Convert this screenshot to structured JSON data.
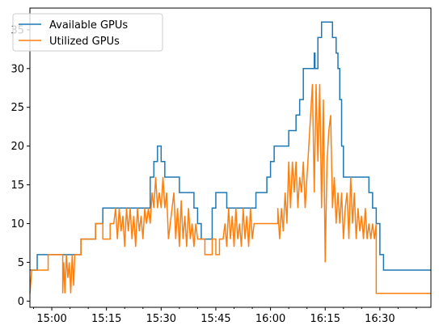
{
  "chart_data": {
    "type": "line",
    "title": "",
    "xlabel": "",
    "ylabel": "",
    "x_unit": "time (HH:MM)",
    "xlim": [
      "14:54",
      "16:44"
    ],
    "ylim": [
      -0.8,
      37.8
    ],
    "x_tick_labels": [
      "15:00",
      "15:15",
      "15:30",
      "15:45",
      "16:00",
      "16:15",
      "16:30"
    ],
    "y_ticks": [
      0,
      5,
      10,
      15,
      20,
      25,
      30,
      35
    ],
    "grid": false,
    "legend": {
      "placement": "top-left"
    },
    "series": [
      {
        "name": "Available GPUs",
        "color": "#1f77b4",
        "points": [
          [
            "14:54",
            4
          ],
          [
            "14:56",
            4
          ],
          [
            "14:56",
            6
          ],
          [
            "15:08",
            6
          ],
          [
            "15:08",
            8
          ],
          [
            "15:12",
            8
          ],
          [
            "15:12",
            10
          ],
          [
            "15:14",
            10
          ],
          [
            "15:14",
            12
          ],
          [
            "15:27",
            12
          ],
          [
            "15:27",
            16
          ],
          [
            "15:28",
            16
          ],
          [
            "15:28",
            18
          ],
          [
            "15:29",
            18
          ],
          [
            "15:29",
            20
          ],
          [
            "15:30",
            20
          ],
          [
            "15:30",
            18
          ],
          [
            "15:31",
            18
          ],
          [
            "15:31",
            16
          ],
          [
            "15:35",
            16
          ],
          [
            "15:35",
            14
          ],
          [
            "15:39",
            14
          ],
          [
            "15:39",
            12
          ],
          [
            "15:40",
            12
          ],
          [
            "15:40",
            10
          ],
          [
            "15:41",
            10
          ],
          [
            "15:41",
            8
          ],
          [
            "15:44",
            8
          ],
          [
            "15:44",
            12
          ],
          [
            "15:45",
            12
          ],
          [
            "15:45",
            14
          ],
          [
            "15:48",
            14
          ],
          [
            "15:48",
            12
          ],
          [
            "15:56",
            12
          ],
          [
            "15:56",
            14
          ],
          [
            "15:59",
            14
          ],
          [
            "15:59",
            16
          ],
          [
            "16:00",
            16
          ],
          [
            "16:00",
            18
          ],
          [
            "16:01",
            18
          ],
          [
            "16:01",
            20
          ],
          [
            "16:05",
            20
          ],
          [
            "16:05",
            22
          ],
          [
            "16:07",
            22
          ],
          [
            "16:07",
            24
          ],
          [
            "16:08",
            24
          ],
          [
            "16:08",
            26
          ],
          [
            "16:09",
            26
          ],
          [
            "16:09",
            30
          ],
          [
            "16:12",
            30
          ],
          [
            "16:12",
            32
          ],
          [
            "16:12.2",
            32
          ],
          [
            "16:12.2",
            30
          ],
          [
            "16:13",
            30
          ],
          [
            "16:13",
            34
          ],
          [
            "16:14",
            34
          ],
          [
            "16:14",
            36
          ],
          [
            "16:17",
            36
          ],
          [
            "16:17",
            34
          ],
          [
            "16:18",
            34
          ],
          [
            "16:18",
            32
          ],
          [
            "16:18.5",
            32
          ],
          [
            "16:18.5",
            30
          ],
          [
            "16:19",
            30
          ],
          [
            "16:19",
            26
          ],
          [
            "16:19.5",
            26
          ],
          [
            "16:19.5",
            20
          ],
          [
            "16:20",
            20
          ],
          [
            "16:20",
            16
          ],
          [
            "16:27",
            16
          ],
          [
            "16:27",
            14
          ],
          [
            "16:28",
            14
          ],
          [
            "16:28",
            12
          ],
          [
            "16:29",
            12
          ],
          [
            "16:29",
            10
          ],
          [
            "16:30",
            10
          ],
          [
            "16:30",
            6
          ],
          [
            "16:31",
            6
          ],
          [
            "16:31",
            4
          ],
          [
            "16:44",
            4
          ]
        ]
      },
      {
        "name": "Utilized GPUs",
        "color": "#ff7f0e",
        "points": [
          [
            "14:54",
            1
          ],
          [
            "14:54.5",
            4
          ],
          [
            "14:59",
            4
          ],
          [
            "14:59",
            6
          ],
          [
            "15:03",
            6
          ],
          [
            "15:03",
            1
          ],
          [
            "15:03.3",
            5
          ],
          [
            "15:03.6",
            1
          ],
          [
            "15:04",
            6
          ],
          [
            "15:04.4",
            3
          ],
          [
            "15:04.8",
            5
          ],
          [
            "15:05.2",
            1
          ],
          [
            "15:05.6",
            6
          ],
          [
            "15:06",
            2
          ],
          [
            "15:06.3",
            6
          ],
          [
            "15:08",
            6
          ],
          [
            "15:08",
            8
          ],
          [
            "15:12",
            8
          ],
          [
            "15:12",
            10
          ],
          [
            "15:14",
            10
          ],
          [
            "15:14",
            8
          ],
          [
            "15:16",
            8
          ],
          [
            "15:16",
            10
          ],
          [
            "15:17",
            10
          ],
          [
            "15:17.5",
            12
          ],
          [
            "15:18",
            8
          ],
          [
            "15:18.5",
            12
          ],
          [
            "15:19",
            9
          ],
          [
            "15:19.5",
            11
          ],
          [
            "15:20",
            7
          ],
          [
            "15:20.5",
            12
          ],
          [
            "15:21",
            9
          ],
          [
            "15:21.5",
            12
          ],
          [
            "15:22",
            8
          ],
          [
            "15:22.5",
            11
          ],
          [
            "15:23",
            7
          ],
          [
            "15:23.5",
            12
          ],
          [
            "15:24",
            9
          ],
          [
            "15:24.5",
            11
          ],
          [
            "15:25",
            8
          ],
          [
            "15:25.5",
            12
          ],
          [
            "15:26",
            10
          ],
          [
            "15:26.5",
            12
          ],
          [
            "15:27",
            10
          ],
          [
            "15:27.5",
            14
          ],
          [
            "15:28",
            12
          ],
          [
            "15:28.5",
            16
          ],
          [
            "15:29",
            12
          ],
          [
            "15:29.5",
            14
          ],
          [
            "15:30",
            12
          ],
          [
            "15:30.5",
            16
          ],
          [
            "15:31",
            12
          ],
          [
            "15:31.5",
            14
          ],
          [
            "15:32",
            8
          ],
          [
            "15:32.5",
            10
          ],
          [
            "15:33",
            12
          ],
          [
            "15:33.5",
            14
          ],
          [
            "15:34",
            8
          ],
          [
            "15:34.5",
            12
          ],
          [
            "15:35",
            7
          ],
          [
            "15:35.5",
            13
          ],
          [
            "15:36",
            8
          ],
          [
            "15:36.5",
            11
          ],
          [
            "15:37",
            7
          ],
          [
            "15:37.5",
            12
          ],
          [
            "15:38",
            8
          ],
          [
            "15:38.5",
            10
          ],
          [
            "15:39",
            7
          ],
          [
            "15:39.5",
            10
          ],
          [
            "15:40",
            8
          ],
          [
            "15:42",
            8
          ],
          [
            "15:42",
            6
          ],
          [
            "15:44",
            6
          ],
          [
            "15:44",
            8
          ],
          [
            "15:45",
            8
          ],
          [
            "15:45",
            6
          ],
          [
            "15:46",
            6
          ],
          [
            "15:46",
            8
          ],
          [
            "15:47",
            8
          ],
          [
            "15:47.5",
            10
          ],
          [
            "15:48",
            7
          ],
          [
            "15:48.5",
            12
          ],
          [
            "15:49",
            8
          ],
          [
            "15:49.5",
            11
          ],
          [
            "15:50",
            7
          ],
          [
            "15:50.5",
            12
          ],
          [
            "15:51",
            8
          ],
          [
            "15:51.5",
            10
          ],
          [
            "15:52",
            7
          ],
          [
            "15:52.5",
            12
          ],
          [
            "15:53",
            8
          ],
          [
            "15:53.5",
            11
          ],
          [
            "15:54",
            7
          ],
          [
            "15:54.5",
            12
          ],
          [
            "15:55",
            8
          ],
          [
            "15:55.5",
            10
          ],
          [
            "15:56",
            10
          ],
          [
            "15:59",
            10
          ],
          [
            "16:00",
            10
          ],
          [
            "16:02",
            10
          ],
          [
            "16:02",
            12
          ],
          [
            "16:02.5",
            8
          ],
          [
            "16:03",
            12
          ],
          [
            "16:03.5",
            9
          ],
          [
            "16:04",
            14
          ],
          [
            "16:04.5",
            10
          ],
          [
            "16:05",
            18
          ],
          [
            "16:05.5",
            12
          ],
          [
            "16:06",
            18
          ],
          [
            "16:06.5",
            14
          ],
          [
            "16:07",
            18
          ],
          [
            "16:07.5",
            12
          ],
          [
            "16:08",
            16
          ],
          [
            "16:08.5",
            14
          ],
          [
            "16:09",
            18
          ],
          [
            "16:09.5",
            12
          ],
          [
            "16:10",
            16
          ],
          [
            "16:10.5",
            20
          ],
          [
            "16:11",
            24
          ],
          [
            "16:11.5",
            28
          ],
          [
            "16:12",
            14
          ],
          [
            "16:12.5",
            28
          ],
          [
            "16:13",
            18
          ],
          [
            "16:13.5",
            28
          ],
          [
            "16:14",
            12
          ],
          [
            "16:14.5",
            26
          ],
          [
            "16:15",
            5
          ],
          [
            "16:15.5",
            18
          ],
          [
            "16:16",
            22
          ],
          [
            "16:16.5",
            24
          ],
          [
            "16:17",
            12
          ],
          [
            "16:17.5",
            16
          ],
          [
            "16:18",
            10
          ],
          [
            "16:18.5",
            14
          ],
          [
            "16:19",
            10
          ],
          [
            "16:19.5",
            14
          ],
          [
            "16:20",
            8
          ],
          [
            "16:20.5",
            12
          ],
          [
            "16:21",
            14
          ],
          [
            "16:21.5",
            8
          ],
          [
            "16:22",
            16
          ],
          [
            "16:22.5",
            10
          ],
          [
            "16:23",
            14
          ],
          [
            "16:23.5",
            8
          ],
          [
            "16:24",
            12
          ],
          [
            "16:24.5",
            9
          ],
          [
            "16:25",
            11
          ],
          [
            "16:25.5",
            8
          ],
          [
            "16:26",
            12
          ],
          [
            "16:26.5",
            8
          ],
          [
            "16:27",
            10
          ],
          [
            "16:27.5",
            8
          ],
          [
            "16:28",
            10
          ],
          [
            "16:28.5",
            8
          ],
          [
            "16:29",
            10
          ],
          [
            "16:29",
            1
          ],
          [
            "16:44",
            1
          ]
        ]
      }
    ]
  }
}
